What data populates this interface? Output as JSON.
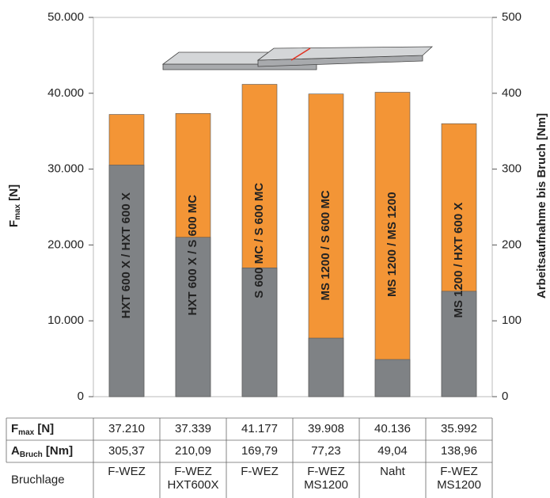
{
  "chart_data": {
    "type": "bar",
    "categories": [
      "HXT 600 X / HXT 600 X",
      "HXT 600 X / S 600 MC",
      "S 600 MC / S 600 MC",
      "MS 1200 / S 600 MC",
      "MS 1200 / MS 1200",
      "MS 1200 / HXT 600 X"
    ],
    "series": [
      {
        "color": "#f39536",
        "values": [
          37210,
          37339,
          41177,
          39908,
          40136,
          35992
        ],
        "value_labels": [
          "37.210",
          "37.339",
          "41.177",
          "39.908",
          "40.136",
          "35.992"
        ]
      },
      {
        "color": "#7f8285",
        "axis": "y2",
        "values": [
          305.37,
          210.09,
          169.79,
          77.23,
          49.04,
          138.96
        ],
        "value_labels": [
          "305,37",
          "210,09",
          "169,79",
          "77,23",
          "49,04",
          "138,96"
        ]
      }
    ],
    "ylim": [
      0,
      50000
    ],
    "yticks": [
      0,
      {
        "value": 10000,
        "label": "10.000"
      },
      {
        "value": 20000,
        "label": "20.000"
      },
      {
        "value": 30000,
        "label": "30.000"
      },
      {
        "value": 40000,
        "label": "40.000"
      },
      {
        "value": 50000,
        "label": "50.000"
      }
    ],
    "y2lim": [
      0,
      500
    ],
    "y2ticks": [
      0,
      100,
      200,
      300,
      400,
      500
    ],
    "y_label": {
      "symbol": "F",
      "subscript": "max",
      "unit": " [N]"
    },
    "y2_label": "Arbeitsaufnahme bis Bruch [Nm]",
    "grid": false,
    "table": {
      "row_labels": [
        {
          "symbol": "F",
          "subscript": "max",
          "unit": " [N]"
        },
        {
          "symbol": "A",
          "subscript": "Bruch",
          "unit": " [Nm]"
        },
        "Bruchlage"
      ],
      "bruchlage": [
        [
          "F-WEZ"
        ],
        [
          "F-WEZ",
          "HXT600X"
        ],
        [
          "F-WEZ"
        ],
        [
          "F-WEZ",
          "MS1200"
        ],
        [
          "Naht"
        ],
        [
          "F-WEZ",
          "MS1200"
        ]
      ]
    }
  }
}
